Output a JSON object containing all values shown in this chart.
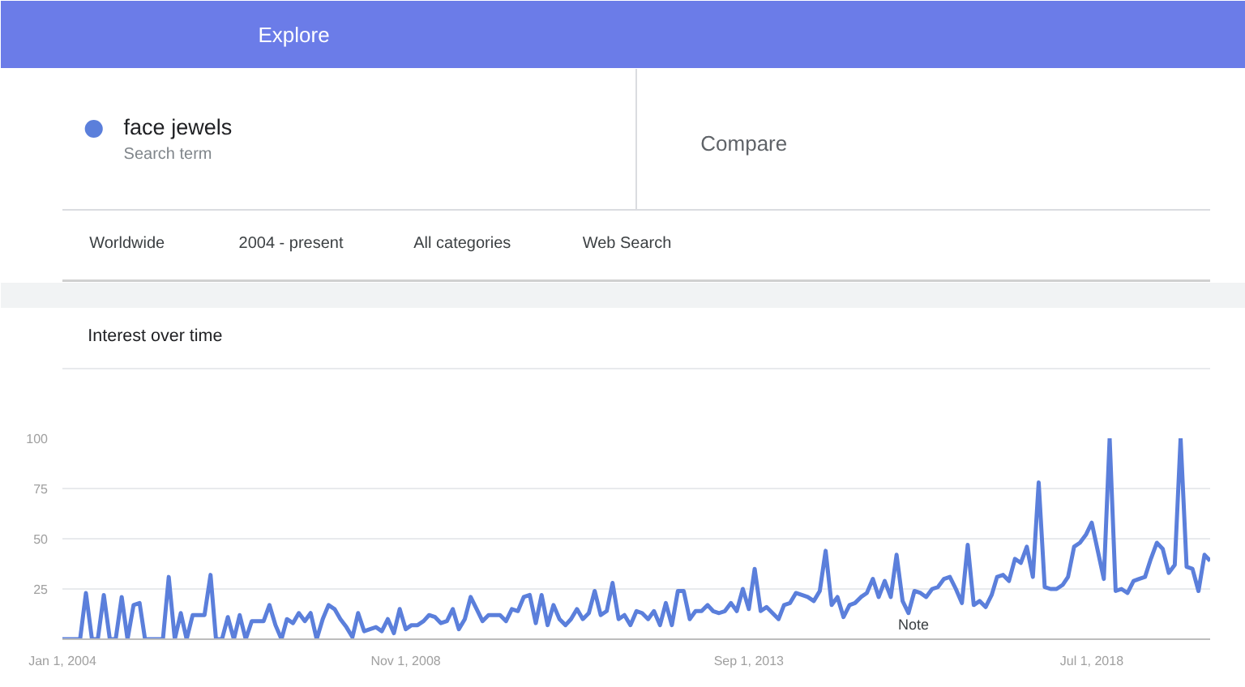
{
  "chart_data": {
    "type": "line",
    "title": "Interest over time",
    "annotations": [
      "Explore",
      "Search term",
      "Compare",
      "Worldwide",
      "2004 - present",
      "All categories",
      "Web Search",
      "Note"
    ],
    "x": [
      "2004-01",
      "2004-02",
      "2004-03",
      "2004-04",
      "2004-05",
      "2004-06",
      "2004-07",
      "2004-08",
      "2004-09",
      "2004-10",
      "2004-11",
      "2004-12",
      "2005-01",
      "2005-02",
      "2005-03",
      "2005-04",
      "2005-05",
      "2005-06",
      "2005-07",
      "2005-08",
      "2005-09",
      "2005-10",
      "2005-11",
      "2005-12",
      "2006-01",
      "2006-02",
      "2006-03",
      "2006-04",
      "2006-05",
      "2006-06",
      "2006-07",
      "2006-08",
      "2006-09",
      "2006-10",
      "2006-11",
      "2006-12",
      "2007-01",
      "2007-02",
      "2007-03",
      "2007-04",
      "2007-05",
      "2007-06",
      "2007-07",
      "2007-08",
      "2007-09",
      "2007-10",
      "2007-11",
      "2007-12",
      "2008-01",
      "2008-02",
      "2008-03",
      "2008-04",
      "2008-05",
      "2008-06",
      "2008-07",
      "2008-08",
      "2008-09",
      "2008-10",
      "2008-11",
      "2008-12",
      "2009-01",
      "2009-02",
      "2009-03",
      "2009-04",
      "2009-05",
      "2009-06",
      "2009-07",
      "2009-08",
      "2009-09",
      "2009-10",
      "2009-11",
      "2009-12",
      "2010-01",
      "2010-02",
      "2010-03",
      "2010-04",
      "2010-05",
      "2010-06",
      "2010-07",
      "2010-08",
      "2010-09",
      "2010-10",
      "2010-11",
      "2010-12",
      "2011-01",
      "2011-02",
      "2011-03",
      "2011-04",
      "2011-05",
      "2011-06",
      "2011-07",
      "2011-08",
      "2011-09",
      "2011-10",
      "2011-11",
      "2011-12",
      "2012-01",
      "2012-02",
      "2012-03",
      "2012-04",
      "2012-05",
      "2012-06",
      "2012-07",
      "2012-08",
      "2012-09",
      "2012-10",
      "2012-11",
      "2012-12",
      "2013-01",
      "2013-02",
      "2013-03",
      "2013-04",
      "2013-05",
      "2013-06",
      "2013-07",
      "2013-08",
      "2013-09",
      "2013-10",
      "2013-11",
      "2013-12",
      "2014-01",
      "2014-02",
      "2014-03",
      "2014-04",
      "2014-05",
      "2014-06",
      "2014-07",
      "2014-08",
      "2014-09",
      "2014-10",
      "2014-11",
      "2014-12",
      "2015-01",
      "2015-02",
      "2015-03",
      "2015-04",
      "2015-05",
      "2015-06",
      "2015-07",
      "2015-08",
      "2015-09",
      "2015-10",
      "2015-11",
      "2015-12",
      "2016-01",
      "2016-02",
      "2016-03",
      "2016-04",
      "2016-05",
      "2016-06",
      "2016-07",
      "2016-08",
      "2016-09",
      "2016-10",
      "2016-11",
      "2016-12",
      "2017-01",
      "2017-02",
      "2017-03",
      "2017-04",
      "2017-05",
      "2017-06",
      "2017-07",
      "2017-08",
      "2017-09",
      "2017-10",
      "2017-11",
      "2017-12",
      "2018-01",
      "2018-02",
      "2018-03",
      "2018-04",
      "2018-05",
      "2018-06",
      "2018-07",
      "2018-08",
      "2018-09",
      "2018-10",
      "2018-11",
      "2018-12",
      "2019-01",
      "2019-02",
      "2019-03",
      "2019-04",
      "2019-05",
      "2019-06",
      "2019-07",
      "2019-08",
      "2019-09",
      "2019-10",
      "2019-11",
      "2019-12",
      "2020-01",
      "2020-02",
      "2020-03"
    ],
    "series": [
      {
        "name": "face jewels",
        "color": "#5b7fdb",
        "values": [
          0,
          0,
          0,
          0,
          23,
          0,
          0,
          22,
          0,
          0,
          21,
          0,
          17,
          18,
          0,
          0,
          0,
          0,
          31,
          0,
          13,
          0,
          12,
          12,
          12,
          32,
          0,
          0,
          11,
          0,
          12,
          0,
          9,
          9,
          9,
          17,
          7,
          0,
          10,
          8,
          13,
          9,
          13,
          0,
          10,
          17,
          15,
          10,
          6,
          1,
          13,
          4,
          5,
          6,
          4,
          10,
          3,
          15,
          5,
          7,
          7,
          9,
          12,
          11,
          8,
          9,
          15,
          5,
          10,
          21,
          15,
          9,
          12,
          12,
          12,
          9,
          15,
          14,
          21,
          22,
          8,
          22,
          7,
          17,
          10,
          7,
          10,
          15,
          10,
          13,
          24,
          12,
          14,
          28,
          10,
          12,
          7,
          14,
          13,
          10,
          14,
          7,
          18,
          7,
          24,
          24,
          10,
          14,
          14,
          17,
          14,
          13,
          14,
          18,
          14,
          25,
          15,
          35,
          14,
          16,
          13,
          10,
          17,
          18,
          23,
          22,
          21,
          19,
          24,
          44,
          17,
          21,
          11,
          17,
          18,
          21,
          23,
          30,
          21,
          29,
          21,
          42,
          19,
          13,
          24,
          23,
          21,
          25,
          26,
          30,
          31,
          25,
          18,
          47,
          17,
          19,
          16,
          22,
          31,
          32,
          29,
          40,
          38,
          46,
          31,
          78,
          26,
          25,
          25,
          27,
          31,
          46,
          48,
          52,
          58,
          44,
          30,
          100,
          24,
          25,
          23,
          29,
          30,
          31,
          40,
          48,
          45,
          33,
          37,
          100,
          36,
          35,
          24,
          42,
          39
        ]
      }
    ],
    "xlim": [
      "2004-01",
      "2020-03"
    ],
    "ylim": [
      0,
      100
    ],
    "xticks": [
      {
        "value": "2004-01",
        "label": "Jan 1, 2004"
      },
      {
        "value": "2008-11",
        "label": "Nov 1, 2008"
      },
      {
        "value": "2013-09",
        "label": "Sep 1, 2013"
      },
      {
        "value": "2018-07",
        "label": "Jul 1, 2018"
      }
    ],
    "yticks": [
      {
        "value": 0,
        "label": null
      },
      25,
      50,
      75,
      100
    ],
    "grid": "y",
    "legend": "top left"
  }
}
